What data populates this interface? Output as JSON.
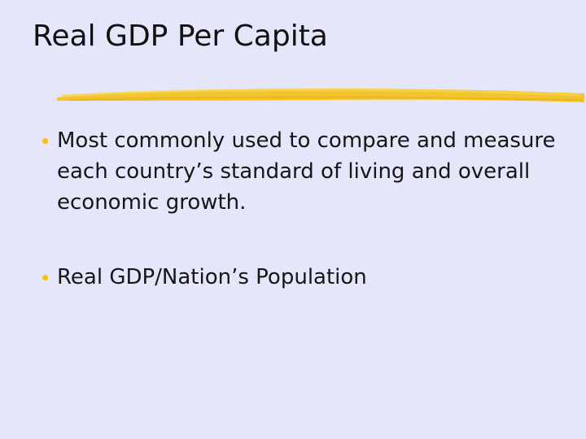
{
  "slide": {
    "title": "Real GDP Per Capita",
    "accent_color": "#f2c019",
    "background_color": "#e6e6fa",
    "bullets": [
      {
        "text": "Most commonly used to compare and measure each country’s standard of living and overall economic growth."
      },
      {
        "text": "Real GDP/Nation’s Population"
      }
    ]
  }
}
